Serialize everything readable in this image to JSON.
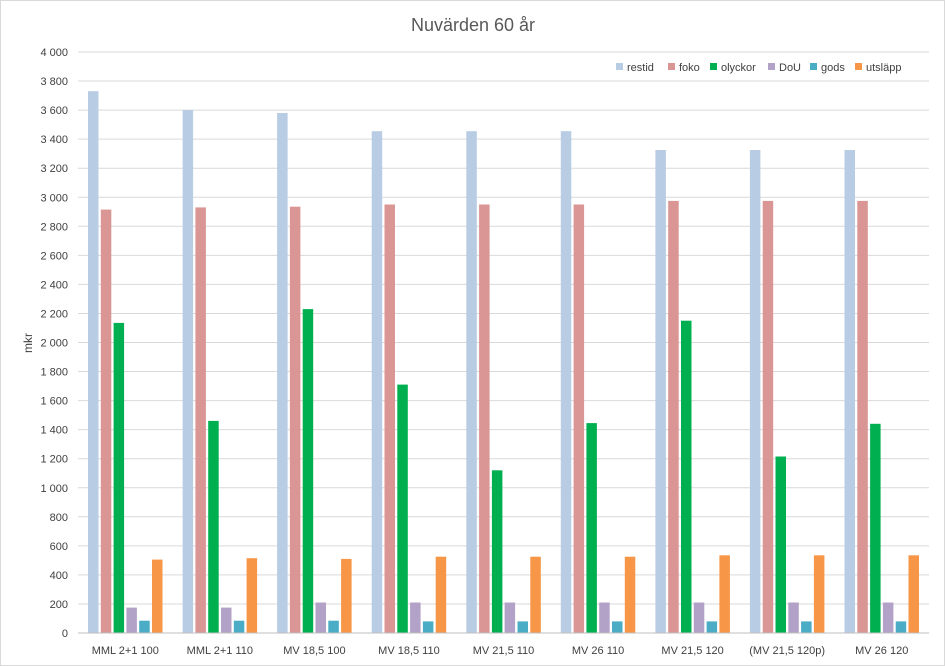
{
  "chart_data": {
    "type": "bar",
    "title": "Nuvärden 60 år",
    "xlabel": "",
    "ylabel": "mkr",
    "ylim": [
      0,
      4000
    ],
    "yticks": [
      0,
      200,
      400,
      600,
      800,
      1000,
      1200,
      1400,
      1600,
      1800,
      2000,
      2200,
      2400,
      2600,
      2800,
      3000,
      3200,
      3400,
      3600,
      3800,
      4000
    ],
    "ytick_labels": [
      "0",
      "200",
      "400",
      "600",
      "800",
      "1 000",
      "1 200",
      "1 400",
      "1 600",
      "1 800",
      "2 000",
      "2 200",
      "2 400",
      "2 600",
      "2 800",
      "3 000",
      "3 200",
      "3 400",
      "3 600",
      "3 800",
      "4 000"
    ],
    "grid": true,
    "legend_position": "top-right",
    "categories": [
      "MML 2+1 100",
      "MML 2+1 110",
      "MV 18,5 100",
      "MV 18,5 110",
      "MV 21,5 110",
      "MV 26 110",
      "MV 21,5 120",
      "(MV 21,5 120p)",
      "MV 26 120"
    ],
    "series": [
      {
        "name": "restid",
        "color": "#b8cce4",
        "values": [
          3730,
          3600,
          3580,
          3455,
          3455,
          3455,
          3325,
          3325,
          3325
        ]
      },
      {
        "name": "foko",
        "color": "#d99694",
        "values": [
          2915,
          2930,
          2935,
          2950,
          2950,
          2950,
          2975,
          2975,
          2975
        ]
      },
      {
        "name": "olyckor",
        "color": "#00b050",
        "values": [
          2135,
          1460,
          2230,
          1710,
          1120,
          1445,
          2150,
          1215,
          1440
        ]
      },
      {
        "name": "DoU",
        "color": "#b3a2c7",
        "values": [
          175,
          175,
          210,
          210,
          210,
          210,
          210,
          210,
          210
        ]
      },
      {
        "name": "gods",
        "color": "#4bacc6",
        "values": [
          85,
          85,
          85,
          80,
          80,
          80,
          80,
          80,
          80
        ]
      },
      {
        "name": "utsläpp",
        "color": "#f79646",
        "values": [
          505,
          515,
          510,
          525,
          525,
          525,
          535,
          535,
          535
        ]
      }
    ]
  }
}
